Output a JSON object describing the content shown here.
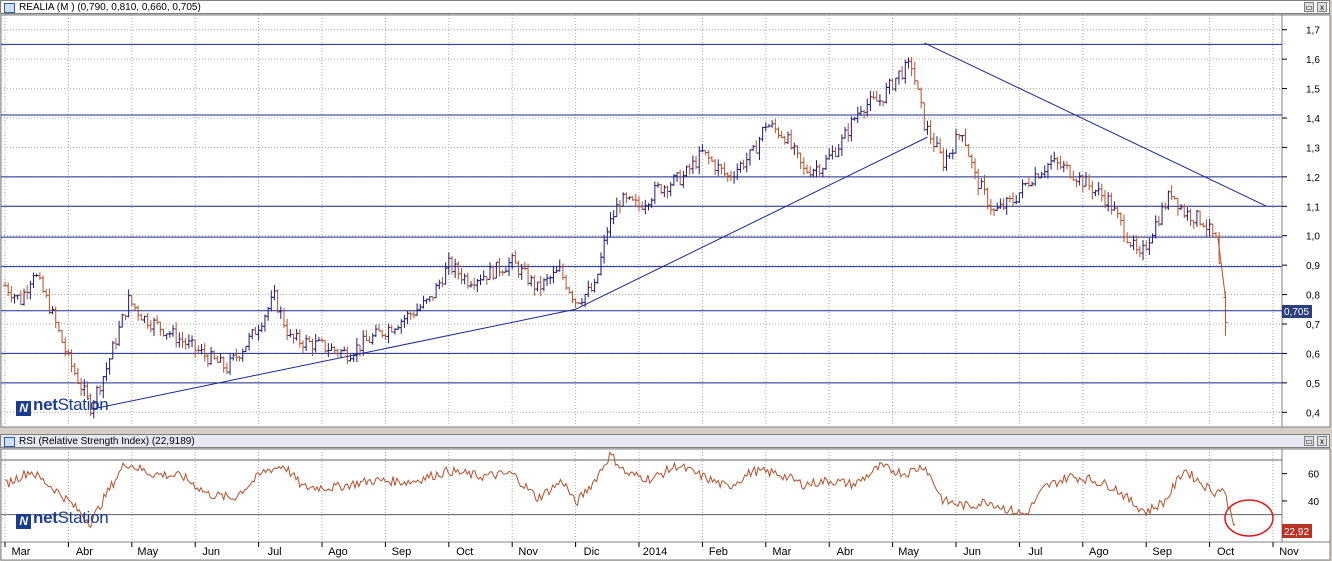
{
  "price_panel": {
    "title": "REALIA (M ) (0,790, 0,810, 0,660, 0,705)",
    "last_value": "0,705",
    "logo": {
      "prefix": "net",
      "suffix": "Station"
    },
    "buttons": {
      "restore": "▭",
      "close": "x"
    }
  },
  "rsi_panel": {
    "title": "RSI (Relative Strength Index) (22,9189)",
    "last_value": "22,92",
    "logo": {
      "prefix": "net",
      "suffix": "Station"
    },
    "buttons": {
      "restore": "▭",
      "close": "x"
    }
  },
  "colors": {
    "up_bar": "#1c1c7a",
    "down_bar": "#b5502a",
    "line_color": "#b5502a",
    "trendline": "#1a2a8c",
    "hline": "#1a2a8c",
    "grid": "#aaaaaa",
    "badge_bg": "#2b3f7a",
    "rsi_badge_bg": "#b83226",
    "circle": "#d81a1a"
  },
  "chart_data": [
    {
      "type": "ohlc",
      "series_name": "REALIA",
      "ylim": [
        0.35,
        1.75
      ],
      "yticks": [
        "0,4",
        "0,5",
        "0,6",
        "0,7",
        "0,8",
        "0,9",
        "1,0",
        "1,1",
        "1,2",
        "1,3",
        "1,4",
        "1,5",
        "1,6",
        "1,7"
      ],
      "ytick_values": [
        0.4,
        0.5,
        0.6,
        0.7,
        0.8,
        0.9,
        1.0,
        1.1,
        1.2,
        1.3,
        1.4,
        1.5,
        1.6,
        1.7
      ],
      "x_months": [
        "Mar",
        "Abr",
        "May",
        "Jun",
        "Jul",
        "Ago",
        "Sep",
        "Oct",
        "Nov",
        "Dic",
        "2014",
        "Feb",
        "Mar",
        "Abr",
        "May",
        "Jun",
        "Jul",
        "Ago",
        "Sep",
        "Oct",
        "Nov"
      ],
      "grid": true,
      "horizontal_levels": [
        1.65,
        1.41,
        1.2,
        1.1,
        0.995,
        0.895,
        0.745,
        0.6,
        0.5
      ],
      "key_points": [
        {
          "m": 0.0,
          "v": 0.83
        },
        {
          "m": 0.25,
          "v": 0.78
        },
        {
          "m": 0.45,
          "v": 0.88
        },
        {
          "m": 0.7,
          "v": 0.76
        },
        {
          "m": 1.0,
          "v": 0.58
        },
        {
          "m": 1.35,
          "v": 0.42
        },
        {
          "m": 1.6,
          "v": 0.55
        },
        {
          "m": 1.95,
          "v": 0.78
        },
        {
          "m": 2.2,
          "v": 0.72
        },
        {
          "m": 2.6,
          "v": 0.67
        },
        {
          "m": 3.1,
          "v": 0.6
        },
        {
          "m": 3.5,
          "v": 0.55
        },
        {
          "m": 3.9,
          "v": 0.66
        },
        {
          "m": 4.25,
          "v": 0.79
        },
        {
          "m": 4.5,
          "v": 0.65
        },
        {
          "m": 4.9,
          "v": 0.63
        },
        {
          "m": 5.4,
          "v": 0.6
        },
        {
          "m": 5.85,
          "v": 0.66
        },
        {
          "m": 6.3,
          "v": 0.72
        },
        {
          "m": 6.7,
          "v": 0.78
        },
        {
          "m": 7.0,
          "v": 0.9
        },
        {
          "m": 7.3,
          "v": 0.85
        },
        {
          "m": 7.6,
          "v": 0.87
        },
        {
          "m": 8.0,
          "v": 0.91
        },
        {
          "m": 8.4,
          "v": 0.82
        },
        {
          "m": 8.75,
          "v": 0.88
        },
        {
          "m": 9.0,
          "v": 0.78
        },
        {
          "m": 9.3,
          "v": 0.82
        },
        {
          "m": 9.5,
          "v": 1.02
        },
        {
          "m": 9.7,
          "v": 1.12
        },
        {
          "m": 10.0,
          "v": 1.1
        },
        {
          "m": 10.3,
          "v": 1.16
        },
        {
          "m": 10.7,
          "v": 1.2
        },
        {
          "m": 11.0,
          "v": 1.28
        },
        {
          "m": 11.4,
          "v": 1.2
        },
        {
          "m": 11.8,
          "v": 1.28
        },
        {
          "m": 12.0,
          "v": 1.38
        },
        {
          "m": 12.3,
          "v": 1.34
        },
        {
          "m": 12.6,
          "v": 1.22
        },
        {
          "m": 12.9,
          "v": 1.24
        },
        {
          "m": 13.2,
          "v": 1.32
        },
        {
          "m": 13.5,
          "v": 1.44
        },
        {
          "m": 13.8,
          "v": 1.46
        },
        {
          "m": 14.1,
          "v": 1.55
        },
        {
          "m": 14.3,
          "v": 1.58
        },
        {
          "m": 14.5,
          "v": 1.38
        },
        {
          "m": 14.8,
          "v": 1.25
        },
        {
          "m": 15.1,
          "v": 1.36
        },
        {
          "m": 15.3,
          "v": 1.2
        },
        {
          "m": 15.6,
          "v": 1.08
        },
        {
          "m": 15.9,
          "v": 1.12
        },
        {
          "m": 16.2,
          "v": 1.2
        },
        {
          "m": 16.5,
          "v": 1.25
        },
        {
          "m": 16.8,
          "v": 1.22
        },
        {
          "m": 17.1,
          "v": 1.17
        },
        {
          "m": 17.4,
          "v": 1.12
        },
        {
          "m": 17.7,
          "v": 1.0
        },
        {
          "m": 17.9,
          "v": 0.92
        },
        {
          "m": 18.1,
          "v": 1.02
        },
        {
          "m": 18.4,
          "v": 1.15
        },
        {
          "m": 18.6,
          "v": 1.08
        },
        {
          "m": 18.9,
          "v": 1.05
        },
        {
          "m": 19.1,
          "v": 0.98
        },
        {
          "m": 19.25,
          "v": 0.72
        }
      ],
      "last": {
        "open": 0.79,
        "high": 0.81,
        "low": 0.66,
        "close": 0.705
      },
      "trendlines": [
        {
          "from": {
            "m": 1.35,
            "v": 0.41
          },
          "to": {
            "m": 9.0,
            "v": 0.75
          }
        },
        {
          "from": {
            "m": 9.0,
            "v": 0.75
          },
          "to": {
            "m": 14.55,
            "v": 1.335
          }
        },
        {
          "from": {
            "m": 14.5,
            "v": 1.655
          },
          "to": {
            "m": 19.9,
            "v": 1.1
          }
        }
      ]
    },
    {
      "type": "line",
      "series_name": "RSI (Relative Strength Index)",
      "ylim": [
        10,
        78
      ],
      "yticks": [
        "40",
        "60"
      ],
      "ytick_values": [
        40,
        60
      ],
      "reference_levels": [
        70,
        30
      ],
      "key_points": [
        {
          "m": 0.0,
          "v": 52
        },
        {
          "m": 0.4,
          "v": 62
        },
        {
          "m": 0.8,
          "v": 48
        },
        {
          "m": 1.0,
          "v": 40
        },
        {
          "m": 1.35,
          "v": 24
        },
        {
          "m": 1.6,
          "v": 45
        },
        {
          "m": 1.9,
          "v": 68
        },
        {
          "m": 2.3,
          "v": 60
        },
        {
          "m": 2.8,
          "v": 58
        },
        {
          "m": 3.2,
          "v": 45
        },
        {
          "m": 3.6,
          "v": 42
        },
        {
          "m": 4.1,
          "v": 62
        },
        {
          "m": 4.4,
          "v": 66
        },
        {
          "m": 4.7,
          "v": 50
        },
        {
          "m": 5.2,
          "v": 50
        },
        {
          "m": 5.8,
          "v": 55
        },
        {
          "m": 6.4,
          "v": 54
        },
        {
          "m": 7.0,
          "v": 62
        },
        {
          "m": 7.5,
          "v": 58
        },
        {
          "m": 8.0,
          "v": 60
        },
        {
          "m": 8.4,
          "v": 42
        },
        {
          "m": 8.8,
          "v": 55
        },
        {
          "m": 9.0,
          "v": 38
        },
        {
          "m": 9.3,
          "v": 55
        },
        {
          "m": 9.55,
          "v": 74
        },
        {
          "m": 9.8,
          "v": 60
        },
        {
          "m": 10.2,
          "v": 56
        },
        {
          "m": 10.6,
          "v": 66
        },
        {
          "m": 11.0,
          "v": 58
        },
        {
          "m": 11.4,
          "v": 50
        },
        {
          "m": 11.8,
          "v": 62
        },
        {
          "m": 12.2,
          "v": 60
        },
        {
          "m": 12.6,
          "v": 52
        },
        {
          "m": 13.0,
          "v": 55
        },
        {
          "m": 13.4,
          "v": 52
        },
        {
          "m": 13.8,
          "v": 65
        },
        {
          "m": 14.2,
          "v": 60
        },
        {
          "m": 14.5,
          "v": 66
        },
        {
          "m": 14.8,
          "v": 40
        },
        {
          "m": 15.2,
          "v": 36
        },
        {
          "m": 15.5,
          "v": 40
        },
        {
          "m": 15.8,
          "v": 34
        },
        {
          "m": 16.1,
          "v": 30
        },
        {
          "m": 16.4,
          "v": 50
        },
        {
          "m": 16.8,
          "v": 58
        },
        {
          "m": 17.1,
          "v": 56
        },
        {
          "m": 17.5,
          "v": 50
        },
        {
          "m": 17.8,
          "v": 38
        },
        {
          "m": 18.0,
          "v": 32
        },
        {
          "m": 18.3,
          "v": 40
        },
        {
          "m": 18.6,
          "v": 63
        },
        {
          "m": 18.9,
          "v": 52
        },
        {
          "m": 19.1,
          "v": 46
        },
        {
          "m": 19.2,
          "v": 50
        },
        {
          "m": 19.4,
          "v": 22.92
        }
      ],
      "last_value": 22.92
    }
  ]
}
